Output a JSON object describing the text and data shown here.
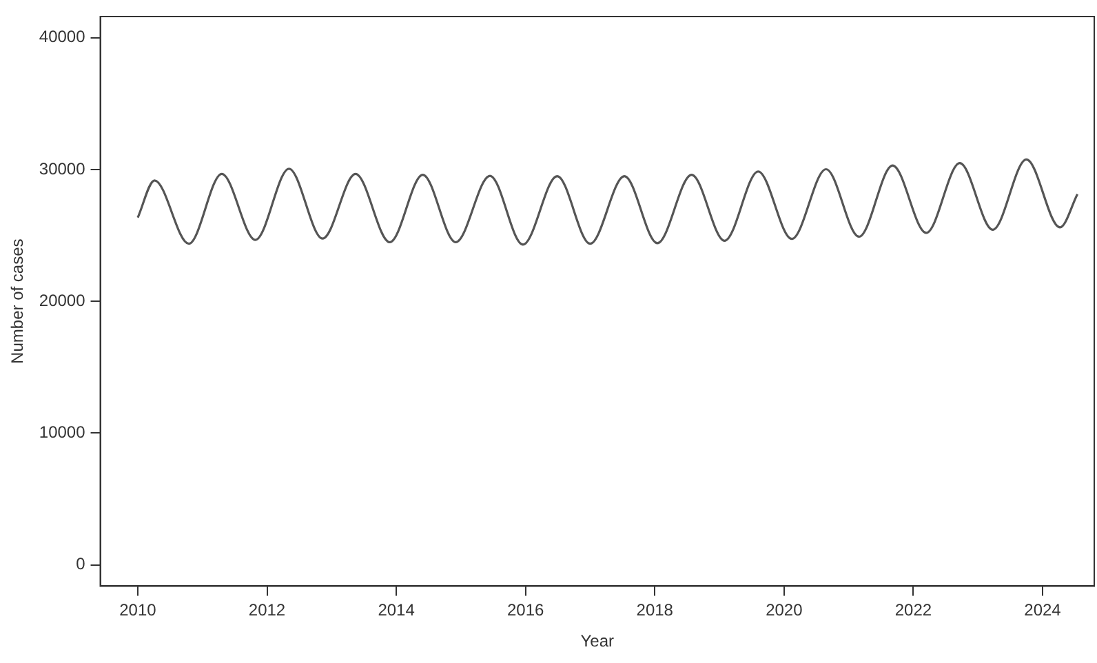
{
  "chart_data": {
    "type": "line",
    "xlabel": "Year",
    "ylabel": "Number of cases",
    "x": [
      2010.0,
      2010.26,
      2010.79,
      2011.3,
      2011.82,
      2012.34,
      2012.86,
      2013.37,
      2013.9,
      2014.41,
      2014.92,
      2015.45,
      2015.96,
      2016.49,
      2017.0,
      2017.53,
      2018.04,
      2018.57,
      2019.08,
      2019.6,
      2020.12,
      2020.65,
      2021.16,
      2021.68,
      2022.2,
      2022.72,
      2023.23,
      2023.75,
      2024.27,
      2024.54
    ],
    "series": [
      {
        "color": "#555555",
        "values": [
          26350,
          29170,
          24370,
          29660,
          24660,
          30050,
          24760,
          29660,
          24480,
          29600,
          24480,
          29520,
          24300,
          29490,
          24370,
          29490,
          24410,
          29600,
          24590,
          29840,
          24730,
          30020,
          24900,
          30300,
          25190,
          30480,
          25430,
          30760,
          25610,
          28120
        ]
      }
    ],
    "xlim": [
      2009.42,
      2024.8
    ],
    "ylim": [
      -1600,
      41600
    ],
    "xticks": [
      2010,
      2012,
      2014,
      2016,
      2018,
      2020,
      2022,
      2024
    ],
    "yticks": [
      0,
      10000,
      20000,
      30000,
      40000
    ],
    "legend": false,
    "marker": "none",
    "grid": false
  }
}
